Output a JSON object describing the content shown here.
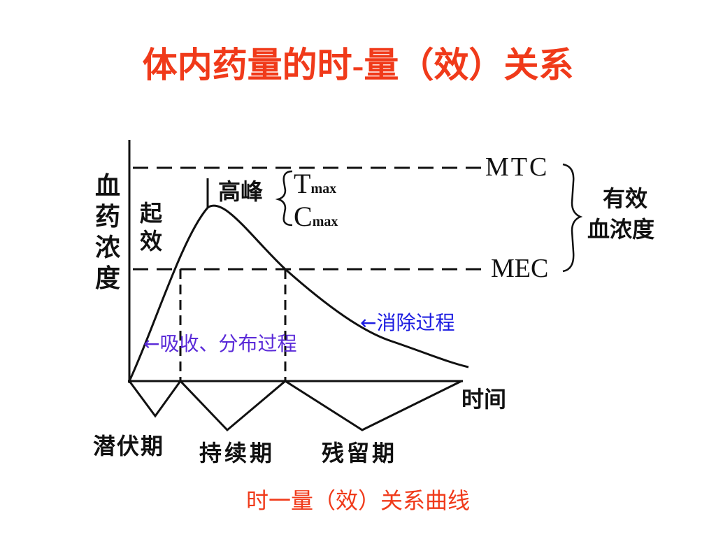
{
  "header": {
    "title": "体内药量的时-量（效）关系"
  },
  "diagram": {
    "y_axis_label": "血药浓度",
    "x_axis_label": "时间",
    "onset": "起效",
    "peak": "高峰",
    "peak_params": [
      {
        "symbol": "T",
        "sub": "max"
      },
      {
        "symbol": "C",
        "sub": "max"
      }
    ],
    "mtc": "MTC",
    "mec": "MEC",
    "effective_range": [
      "有效",
      "血浓度"
    ],
    "elimination": "←消除过程",
    "absorption": "←吸收、分布过程",
    "phases": [
      "潜伏期",
      "持续期",
      "残留期"
    ]
  },
  "caption": "时一量（效）关系曲线"
}
